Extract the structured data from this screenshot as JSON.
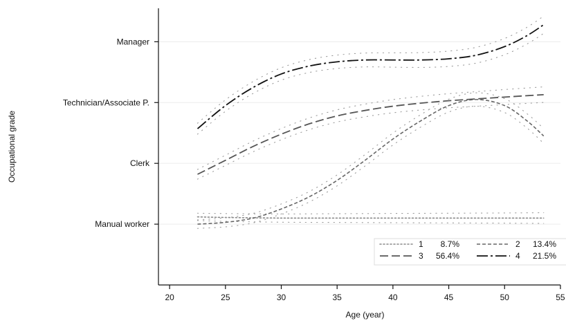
{
  "chart_data": {
    "type": "line",
    "title": "",
    "xlabel": "Age (year)",
    "ylabel": "Occupational grade",
    "xlim": [
      19,
      55.5
    ],
    "ylim": [
      0.0,
      4.55
    ],
    "x_ticks": [
      20,
      25,
      30,
      35,
      40,
      45,
      50,
      55
    ],
    "y_ticks": [
      {
        "value": 1,
        "label": "Manual worker"
      },
      {
        "value": 2,
        "label": "Clerk"
      },
      {
        "value": 3,
        "label": "Technician/Associate P."
      },
      {
        "value": 4,
        "label": "Manager"
      }
    ],
    "grid": "horizontal at y ticks",
    "legend_position": "bottom-right",
    "series": [
      {
        "name": "1",
        "share": "8.7%",
        "line_style": "dotted",
        "color": "#8a8a8a",
        "x": [
          22.5,
          25,
          30,
          35,
          40,
          45,
          50,
          53.5
        ],
        "y": [
          1.12,
          1.11,
          1.1,
          1.1,
          1.1,
          1.1,
          1.1,
          1.1
        ]
      },
      {
        "name": "2",
        "share": "13.4%",
        "line_style": "short-dash",
        "color": "#666666",
        "x": [
          22.5,
          25,
          27.5,
          30,
          32.5,
          35,
          37.5,
          40,
          42.5,
          45,
          47.5,
          50,
          52,
          53.5
        ],
        "y": [
          1.0,
          1.03,
          1.1,
          1.25,
          1.45,
          1.72,
          2.05,
          2.4,
          2.7,
          2.95,
          3.05,
          2.95,
          2.7,
          2.45
        ]
      },
      {
        "name": "3",
        "share": "56.4%",
        "line_style": "long-dash",
        "color": "#555555",
        "x": [
          22.5,
          25,
          27.5,
          30,
          32.5,
          35,
          37.5,
          40,
          42.5,
          45,
          47.5,
          50,
          53.5
        ],
        "y": [
          1.82,
          2.05,
          2.28,
          2.48,
          2.65,
          2.78,
          2.87,
          2.94,
          2.99,
          3.03,
          3.06,
          3.09,
          3.13
        ]
      },
      {
        "name": "4",
        "share": "21.5%",
        "line_style": "long-dash-dot",
        "color": "#111111",
        "x": [
          22.5,
          25,
          27.5,
          30,
          32.5,
          35,
          37.5,
          40,
          42.5,
          45,
          47.5,
          50,
          52,
          53.5
        ],
        "y": [
          2.57,
          2.95,
          3.25,
          3.47,
          3.6,
          3.67,
          3.7,
          3.7,
          3.7,
          3.72,
          3.78,
          3.92,
          4.1,
          4.28
        ]
      }
    ]
  }
}
